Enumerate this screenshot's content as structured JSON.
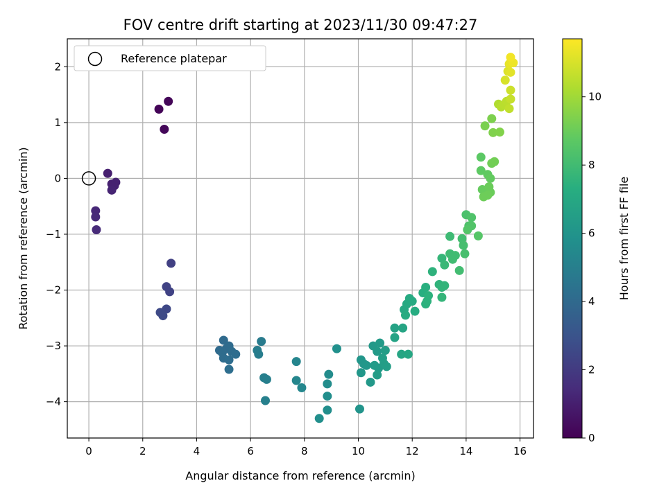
{
  "chart_data": {
    "type": "scatter",
    "title": "FOV centre drift starting at 2023/11/30 09:47:27",
    "xlabel": "Angular distance from reference (arcmin)",
    "ylabel": "Rotation from reference (arcmin)",
    "xlim": [
      -0.8,
      16.5
    ],
    "ylim": [
      -4.65,
      2.5
    ],
    "xticks": [
      0,
      2,
      4,
      6,
      8,
      10,
      12,
      14,
      16
    ],
    "yticks": [
      -4,
      -3,
      -2,
      -1,
      0,
      1,
      2
    ],
    "grid": true,
    "legend": {
      "position": "top-left",
      "entries": [
        "Reference platepar"
      ]
    },
    "reference_point": {
      "x": 0,
      "y": 0
    },
    "colorbar": {
      "label": "Hours from first FF file",
      "colormap": "viridis",
      "range": [
        0,
        11.7
      ],
      "ticks": [
        0,
        2,
        4,
        6,
        8,
        10
      ]
    },
    "points": [
      [
        2.6,
        1.24,
        0.1
      ],
      [
        2.95,
        1.38,
        0.15
      ],
      [
        2.8,
        0.88,
        0.2
      ],
      [
        0.7,
        0.09,
        1.0
      ],
      [
        0.85,
        -0.1,
        1.05
      ],
      [
        1.0,
        -0.07,
        1.1
      ],
      [
        0.95,
        -0.13,
        1.1
      ],
      [
        0.85,
        -0.21,
        1.15
      ],
      [
        0.25,
        -0.58,
        1.3
      ],
      [
        0.25,
        -0.69,
        1.35
      ],
      [
        0.28,
        -0.92,
        1.4
      ],
      [
        3.05,
        -1.52,
        2.2
      ],
      [
        2.88,
        -1.94,
        2.3
      ],
      [
        3.0,
        -2.03,
        2.3
      ],
      [
        2.88,
        -2.34,
        2.5
      ],
      [
        2.65,
        -2.4,
        2.6
      ],
      [
        2.75,
        -2.46,
        2.6
      ],
      [
        5.0,
        -2.9,
        4.0
      ],
      [
        4.85,
        -3.08,
        4.0
      ],
      [
        5.1,
        -3.05,
        4.0
      ],
      [
        5.2,
        -3.0,
        4.05
      ],
      [
        4.95,
        -3.12,
        4.1
      ],
      [
        5.3,
        -3.1,
        4.1
      ],
      [
        5.0,
        -3.22,
        4.1
      ],
      [
        5.2,
        -3.25,
        4.15
      ],
      [
        5.45,
        -3.15,
        4.15
      ],
      [
        5.2,
        -3.42,
        4.2
      ],
      [
        6.4,
        -2.92,
        4.8
      ],
      [
        6.25,
        -3.08,
        4.9
      ],
      [
        6.3,
        -3.15,
        4.9
      ],
      [
        6.5,
        -3.57,
        5.0
      ],
      [
        6.6,
        -3.6,
        5.0
      ],
      [
        6.55,
        -3.98,
        5.05
      ],
      [
        7.7,
        -3.28,
        5.3
      ],
      [
        7.7,
        -3.62,
        5.35
      ],
      [
        7.9,
        -3.75,
        5.4
      ],
      [
        8.9,
        -3.51,
        5.6
      ],
      [
        8.85,
        -3.68,
        5.65
      ],
      [
        8.85,
        -3.9,
        5.7
      ],
      [
        8.85,
        -4.15,
        5.7
      ],
      [
        8.55,
        -4.3,
        5.75
      ],
      [
        9.2,
        -3.05,
        5.8
      ],
      [
        10.05,
        -4.13,
        6.0
      ],
      [
        10.1,
        -3.25,
        6.1
      ],
      [
        10.2,
        -3.32,
        6.1
      ],
      [
        10.3,
        -3.35,
        6.15
      ],
      [
        10.1,
        -3.48,
        6.15
      ],
      [
        10.45,
        -3.65,
        6.2
      ],
      [
        10.55,
        -3.0,
        6.25
      ],
      [
        10.7,
        -3.1,
        6.3
      ],
      [
        10.8,
        -2.95,
        6.3
      ],
      [
        10.6,
        -3.35,
        6.35
      ],
      [
        10.75,
        -3.4,
        6.35
      ],
      [
        10.7,
        -3.52,
        6.4
      ],
      [
        10.95,
        -3.32,
        6.45
      ],
      [
        11.0,
        -3.08,
        6.45
      ],
      [
        11.05,
        -3.37,
        6.5
      ],
      [
        10.9,
        -3.22,
        6.5
      ],
      [
        11.35,
        -2.68,
        6.7
      ],
      [
        11.35,
        -2.85,
        6.75
      ],
      [
        11.65,
        -2.68,
        6.8
      ],
      [
        11.6,
        -3.15,
        6.85
      ],
      [
        11.85,
        -3.15,
        6.9
      ],
      [
        11.7,
        -2.35,
        7.0
      ],
      [
        11.8,
        -2.25,
        7.05
      ],
      [
        11.9,
        -2.15,
        7.1
      ],
      [
        12.0,
        -2.2,
        7.1
      ],
      [
        11.75,
        -2.45,
        7.15
      ],
      [
        12.1,
        -2.38,
        7.2
      ],
      [
        12.4,
        -2.05,
        7.3
      ],
      [
        12.5,
        -1.95,
        7.35
      ],
      [
        12.5,
        -2.25,
        7.4
      ],
      [
        12.6,
        -2.1,
        7.45
      ],
      [
        12.55,
        -2.2,
        7.45
      ],
      [
        12.75,
        -1.67,
        7.5
      ],
      [
        13.0,
        -1.9,
        7.55
      ],
      [
        13.1,
        -1.95,
        7.6
      ],
      [
        13.2,
        -1.92,
        7.6
      ],
      [
        13.1,
        -2.13,
        7.65
      ],
      [
        13.1,
        -1.43,
        7.7
      ],
      [
        13.2,
        -1.55,
        7.8
      ],
      [
        13.4,
        -1.04,
        7.9
      ],
      [
        13.4,
        -1.35,
        7.95
      ],
      [
        13.5,
        -1.45,
        8.0
      ],
      [
        13.6,
        -1.38,
        8.0
      ],
      [
        13.75,
        -1.65,
        8.05
      ],
      [
        13.85,
        -1.08,
        8.1
      ],
      [
        13.9,
        -1.2,
        8.15
      ],
      [
        13.95,
        -1.35,
        8.2
      ],
      [
        14.0,
        -0.65,
        8.3
      ],
      [
        14.1,
        -0.85,
        8.35
      ],
      [
        14.2,
        -0.7,
        8.4
      ],
      [
        14.2,
        -0.85,
        8.45
      ],
      [
        14.05,
        -0.92,
        8.5
      ],
      [
        14.45,
        -1.03,
        8.55
      ],
      [
        14.55,
        0.38,
        8.7
      ],
      [
        14.55,
        0.14,
        8.75
      ],
      [
        14.8,
        0.07,
        8.8
      ],
      [
        14.9,
        0.0,
        8.85
      ],
      [
        14.6,
        -0.2,
        8.9
      ],
      [
        14.7,
        -0.25,
        8.95
      ],
      [
        14.85,
        -0.15,
        9.0
      ],
      [
        14.9,
        -0.25,
        9.0
      ],
      [
        14.8,
        -0.3,
        9.05
      ],
      [
        14.65,
        -0.33,
        9.05
      ],
      [
        14.95,
        0.27,
        9.1
      ],
      [
        15.05,
        0.3,
        9.15
      ],
      [
        14.7,
        0.94,
        9.3
      ],
      [
        14.95,
        1.07,
        9.35
      ],
      [
        15.0,
        0.82,
        9.4
      ],
      [
        15.25,
        0.83,
        9.45
      ],
      [
        15.2,
        1.33,
        10.3
      ],
      [
        15.3,
        1.28,
        10.4
      ],
      [
        15.4,
        1.32,
        10.45
      ],
      [
        15.5,
        1.38,
        10.5
      ],
      [
        15.6,
        1.25,
        10.6
      ],
      [
        15.65,
        1.42,
        10.7
      ],
      [
        15.65,
        1.58,
        10.8
      ],
      [
        15.45,
        1.76,
        11.0
      ],
      [
        15.55,
        1.92,
        11.1
      ],
      [
        15.65,
        1.9,
        11.2
      ],
      [
        15.6,
        2.05,
        11.3
      ],
      [
        15.75,
        2.07,
        11.4
      ],
      [
        15.65,
        2.17,
        11.5
      ]
    ]
  }
}
